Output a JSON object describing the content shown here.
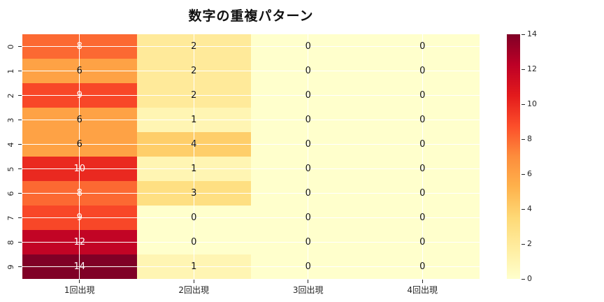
{
  "title": "数字の重複パターン",
  "chart_data": {
    "type": "heatmap",
    "title": "数字の重複パターン",
    "row_labels": [
      "0",
      "1",
      "2",
      "3",
      "4",
      "5",
      "6",
      "7",
      "8",
      "9"
    ],
    "col_labels": [
      "1回出現",
      "2回出現",
      "3回出現",
      "4回出現"
    ],
    "values": [
      [
        8,
        2,
        0,
        0
      ],
      [
        6,
        2,
        0,
        0
      ],
      [
        9,
        2,
        0,
        0
      ],
      [
        6,
        1,
        0,
        0
      ],
      [
        6,
        4,
        0,
        0
      ],
      [
        10,
        1,
        0,
        0
      ],
      [
        8,
        3,
        0,
        0
      ],
      [
        9,
        0,
        0,
        0
      ],
      [
        12,
        0,
        0,
        0
      ],
      [
        14,
        1,
        0,
        0
      ]
    ],
    "vmin": 0,
    "vmax": 14,
    "colormap": "YlOrRd",
    "colormap_stops": [
      "#ffffcc",
      "#ffeda0",
      "#fed976",
      "#feb24c",
      "#fd8d3c",
      "#fc4e2a",
      "#e31a1c",
      "#bd0026",
      "#800026"
    ],
    "colorbar_ticks": [
      0,
      2,
      4,
      6,
      8,
      10,
      12,
      14
    ],
    "white_text_threshold": 7,
    "annotation_color_light": "#ffffff",
    "annotation_color_dark": "#151515",
    "grid_color": "#ffffff",
    "legend_position": "right-colorbar",
    "grid": "on"
  }
}
